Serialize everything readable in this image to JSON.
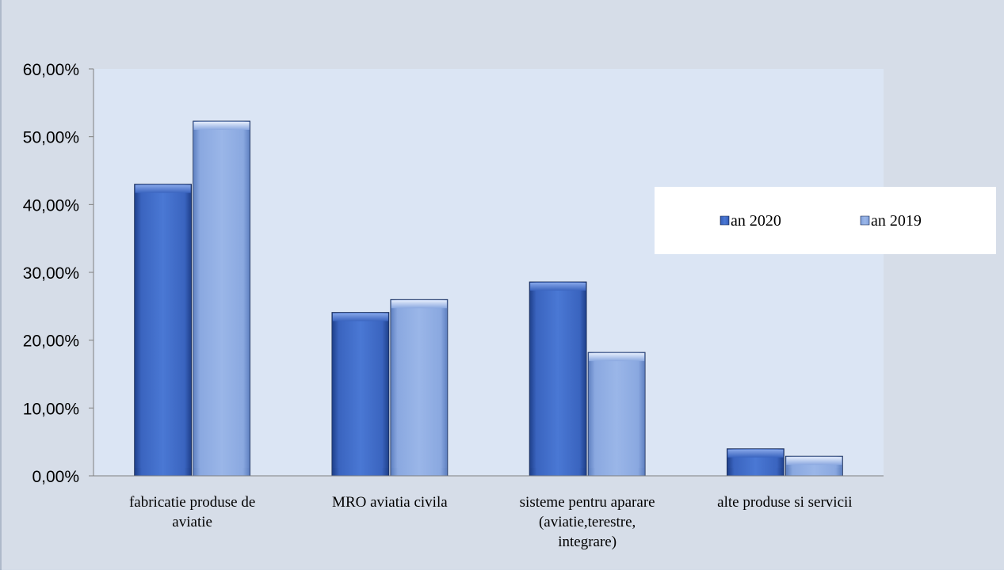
{
  "chart_data": {
    "type": "bar",
    "categories": [
      [
        "fabricatie produse de",
        "aviatie"
      ],
      [
        "MRO aviatia civila"
      ],
      [
        "sisteme pentru aparare",
        "(aviatie,terestre,",
        "integrare)"
      ],
      [
        "alte produse si servicii"
      ]
    ],
    "series": [
      {
        "name": "an 2020",
        "values": [
          43.0,
          24.1,
          28.6,
          4.0
        ],
        "color": "#4a78d4"
      },
      {
        "name": "an 2019",
        "values": [
          52.3,
          26.0,
          18.2,
          2.9
        ],
        "color": "#9ab6e8"
      }
    ],
    "yticks": [
      "0,00%",
      "10,00%",
      "20,00%",
      "30,00%",
      "40,00%",
      "50,00%",
      "60,00%"
    ],
    "ylim": [
      0,
      60
    ],
    "grid": false,
    "legend": "right",
    "colors": {
      "outer_background": "#d6dde8",
      "plot_background": "#dbe5f4",
      "legend_background": "#ffffff"
    }
  }
}
